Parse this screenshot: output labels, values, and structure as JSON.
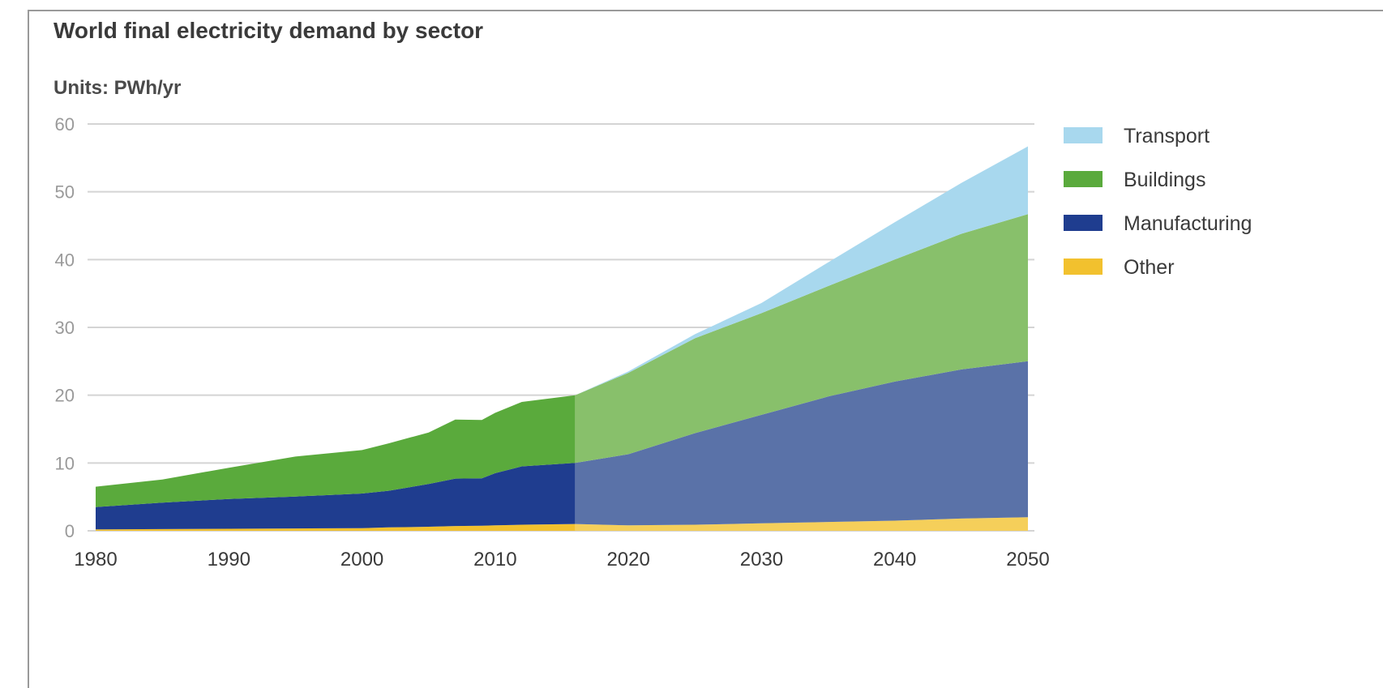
{
  "chart_data": {
    "type": "area",
    "stacked": true,
    "title": "World final electricity demand by sector",
    "subtitle": "Units: PWh/yr",
    "xlabel": "",
    "ylabel": "",
    "xlim": [
      1980,
      2050
    ],
    "ylim": [
      0,
      60
    ],
    "y_ticks": [
      "0",
      "10",
      "20",
      "30",
      "40",
      "50",
      "60"
    ],
    "x_ticks": [
      "1980",
      "1990",
      "2000",
      "2010",
      "2020",
      "2030",
      "2040",
      "2050"
    ],
    "grid": true,
    "legend_position": "right",
    "forecast_start": 2016,
    "historic_colors": {
      "Other": "#f2c12e",
      "Manufacturing": "#1f3d8f",
      "Buildings": "#5aaa3c",
      "Transport": "#a8d8ee"
    },
    "forecast_colors": {
      "Other": "#f5cf5a",
      "Manufacturing": "#5a72a8",
      "Buildings": "#88c06b",
      "Transport": "#a8d8ee"
    },
    "x": [
      1980,
      1985,
      1990,
      1995,
      2000,
      2002,
      2005,
      2007,
      2009,
      2010,
      2012,
      2016,
      2020,
      2025,
      2030,
      2035,
      2040,
      2045,
      2050
    ],
    "series": [
      {
        "name": "Other",
        "values": [
          0.2,
          0.25,
          0.3,
          0.35,
          0.4,
          0.5,
          0.6,
          0.7,
          0.75,
          0.8,
          0.9,
          1.0,
          0.8,
          0.9,
          1.1,
          1.3,
          1.5,
          1.8,
          2.0
        ]
      },
      {
        "name": "Manufacturing",
        "values": [
          3.3,
          3.9,
          4.4,
          4.7,
          5.1,
          5.4,
          6.3,
          7.0,
          7.0,
          7.7,
          8.6,
          9.0,
          10.5,
          13.5,
          16.0,
          18.5,
          20.5,
          22.0,
          23.0
        ]
      },
      {
        "name": "Buildings",
        "values": [
          3.0,
          3.4,
          4.6,
          5.9,
          6.4,
          7.0,
          7.6,
          8.7,
          8.6,
          8.9,
          9.5,
          10.0,
          12.0,
          14.0,
          15.0,
          16.3,
          18.0,
          20.0,
          21.7
        ]
      },
      {
        "name": "Transport",
        "values": [
          0,
          0,
          0,
          0,
          0,
          0,
          0,
          0,
          0,
          0,
          0,
          0,
          0.2,
          0.6,
          1.5,
          3.5,
          5.5,
          7.5,
          10.0
        ]
      }
    ],
    "legend_order": [
      "Transport",
      "Buildings",
      "Manufacturing",
      "Other"
    ]
  }
}
